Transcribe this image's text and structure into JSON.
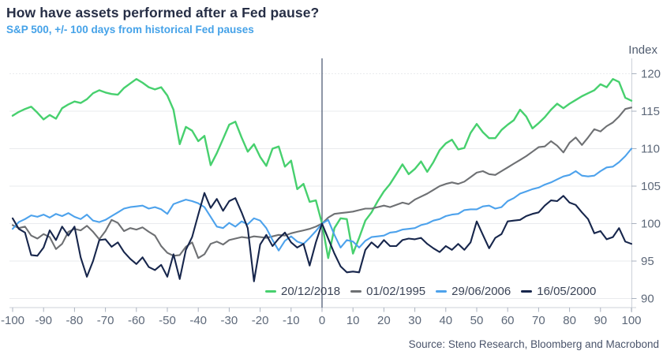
{
  "header": {
    "title": "How have assets performed after a Fed pause?",
    "subtitle": "S&P 500, +/- 100 days from historical Fed pauses"
  },
  "source": "Source: Steno Research, Bloomberg and Macrobond",
  "colors": {
    "title_text": "#262e45",
    "subtitle_text": "#45a2e8",
    "axis_text": "#5d6879",
    "gridline": "#e9ebee",
    "axis_line": "#ccd1d9",
    "tick_mark": "#aab2bf",
    "zero_line": "#44506b",
    "legend_text": "#3b4457",
    "source_text": "#49536a"
  },
  "chart_data": {
    "type": "line",
    "title": "How have assets performed after a Fed pause?",
    "subtitle": "S&P 500, +/- 100 days from historical Fed pauses",
    "xlabel": "",
    "ylabel": "Index",
    "xlim": [
      -100,
      100
    ],
    "ylim": [
      88.5,
      121.5
    ],
    "x_ticks": [
      -100,
      -90,
      -80,
      -70,
      -60,
      -50,
      -40,
      -30,
      -20,
      -10,
      0,
      10,
      20,
      30,
      40,
      50,
      60,
      70,
      80,
      90,
      100
    ],
    "y_ticks": [
      90,
      95,
      100,
      105,
      110,
      115,
      120
    ],
    "grid": "horizontal",
    "zero_line_x": 0,
    "legend_position": "bottom-right-inside",
    "x": [
      -100,
      -98,
      -96,
      -94,
      -92,
      -90,
      -88,
      -86,
      -84,
      -82,
      -80,
      -78,
      -76,
      -74,
      -72,
      -70,
      -68,
      -66,
      -64,
      -62,
      -60,
      -58,
      -56,
      -54,
      -52,
      -50,
      -48,
      -46,
      -44,
      -42,
      -40,
      -38,
      -36,
      -34,
      -32,
      -30,
      -28,
      -26,
      -24,
      -22,
      -20,
      -18,
      -16,
      -14,
      -12,
      -10,
      -8,
      -6,
      -4,
      -2,
      0,
      2,
      4,
      6,
      8,
      10,
      12,
      14,
      16,
      18,
      20,
      22,
      24,
      26,
      28,
      30,
      32,
      34,
      36,
      38,
      40,
      42,
      44,
      46,
      48,
      50,
      52,
      54,
      56,
      58,
      60,
      62,
      64,
      66,
      68,
      70,
      72,
      74,
      76,
      78,
      80,
      82,
      84,
      86,
      88,
      90,
      92,
      94,
      96,
      98,
      100
    ],
    "series": [
      {
        "name": "20/12/2018",
        "color": "#47d06e",
        "values": [
          114.4,
          114.9,
          115.3,
          115.6,
          114.8,
          113.9,
          114.5,
          114.0,
          115.4,
          115.9,
          116.3,
          116.1,
          116.6,
          117.4,
          117.8,
          117.5,
          117.3,
          117.2,
          118.1,
          118.7,
          119.3,
          118.8,
          118.2,
          117.9,
          118.2,
          117.1,
          115.2,
          110.6,
          112.9,
          112.4,
          111.0,
          111.7,
          107.8,
          109.4,
          111.3,
          113.2,
          113.6,
          111.5,
          109.6,
          110.6,
          108.9,
          107.7,
          110.0,
          110.3,
          107.6,
          108.4,
          104.6,
          105.3,
          102.9,
          103.1,
          100.0,
          95.4,
          99.4,
          100.7,
          100.6,
          96.0,
          98.1,
          100.4,
          101.5,
          103.0,
          104.3,
          105.3,
          106.6,
          107.9,
          106.6,
          107.3,
          108.3,
          106.9,
          108.2,
          109.8,
          110.7,
          111.2,
          109.9,
          110.1,
          112.1,
          113.3,
          112.2,
          111.4,
          111.4,
          112.5,
          113.2,
          113.8,
          115.2,
          114.3,
          112.7,
          113.4,
          114.2,
          115.2,
          116.0,
          115.4,
          116.0,
          116.5,
          117.0,
          117.4,
          117.8,
          118.6,
          118.2,
          119.3,
          118.9,
          116.8,
          116.4
        ]
      },
      {
        "name": "01/02/1995",
        "color": "#6e7073",
        "values": [
          99.8,
          99.4,
          99.6,
          98.4,
          98.0,
          98.6,
          98.2,
          96.6,
          97.3,
          98.9,
          99.3,
          99.1,
          99.7,
          98.9,
          97.9,
          99.0,
          100.5,
          100.1,
          99.0,
          99.4,
          99.2,
          99.5,
          98.9,
          98.4,
          97.0,
          96.1,
          95.7,
          95.8,
          96.9,
          97.5,
          95.4,
          95.9,
          97.3,
          97.6,
          97.2,
          97.8,
          98.0,
          98.2,
          98.1,
          98.3,
          98.2,
          98.1,
          98.3,
          98.5,
          98.4,
          98.7,
          98.9,
          99.1,
          99.3,
          99.6,
          100.0,
          100.8,
          101.3,
          101.4,
          101.5,
          101.6,
          101.8,
          102.0,
          102.0,
          102.2,
          102.4,
          102.2,
          102.5,
          102.8,
          102.6,
          103.2,
          103.6,
          104.0,
          104.5,
          105.0,
          105.3,
          105.5,
          105.3,
          105.6,
          106.2,
          106.8,
          107.0,
          106.6,
          106.5,
          107.0,
          107.5,
          108.0,
          108.5,
          109.0,
          109.6,
          110.2,
          110.3,
          111.0,
          110.4,
          109.5,
          110.8,
          111.5,
          110.5,
          111.5,
          112.6,
          112.3,
          113.0,
          113.5,
          114.3,
          115.3,
          115.5
        ]
      },
      {
        "name": "29/06/2006",
        "color": "#4da2ec",
        "values": [
          99.3,
          100.2,
          100.6,
          101.1,
          100.9,
          101.2,
          100.8,
          101.3,
          101.0,
          101.4,
          100.9,
          100.6,
          101.2,
          100.4,
          100.2,
          100.5,
          101.0,
          101.5,
          102.0,
          102.2,
          102.3,
          102.4,
          102.0,
          102.2,
          101.9,
          101.3,
          102.6,
          102.9,
          103.2,
          103.0,
          102.7,
          102.2,
          100.9,
          99.6,
          99.4,
          100.1,
          99.6,
          100.3,
          99.9,
          100.7,
          100.4,
          99.4,
          97.8,
          96.4,
          97.7,
          98.3,
          97.6,
          97.3,
          98.1,
          99.0,
          100.0,
          100.5,
          98.5,
          96.8,
          97.8,
          97.6,
          96.8,
          97.7,
          98.2,
          98.3,
          98.4,
          98.8,
          98.9,
          99.2,
          99.3,
          99.4,
          99.8,
          100.0,
          100.4,
          100.6,
          101.0,
          101.2,
          101.3,
          101.8,
          101.9,
          101.9,
          102.3,
          102.4,
          102.0,
          102.2,
          103.0,
          103.4,
          104.0,
          104.3,
          104.6,
          104.8,
          105.2,
          105.5,
          105.9,
          106.3,
          106.5,
          107.0,
          106.4,
          106.3,
          106.4,
          107.0,
          107.5,
          107.6,
          108.2,
          109.0,
          110.0
        ]
      },
      {
        "name": "16/05/2000",
        "color": "#17264c",
        "values": [
          100.7,
          99.3,
          98.8,
          95.8,
          95.7,
          96.8,
          99.1,
          97.8,
          99.6,
          98.4,
          99.6,
          95.5,
          92.9,
          95.0,
          97.8,
          97.9,
          96.9,
          97.5,
          96.2,
          95.3,
          94.6,
          95.5,
          94.2,
          93.8,
          94.5,
          92.9,
          95.9,
          92.6,
          96.5,
          98.2,
          101.2,
          104.1,
          102.1,
          103.3,
          101.7,
          103.0,
          103.4,
          101.5,
          99.4,
          92.3,
          97.2,
          98.5,
          97.0,
          98.0,
          98.8,
          97.5,
          96.8,
          97.3,
          94.4,
          97.5,
          100.0,
          98.0,
          96.0,
          94.3,
          93.5,
          93.6,
          93.5,
          96.5,
          97.5,
          96.8,
          97.8,
          97.0,
          97.0,
          97.8,
          98.0,
          97.9,
          98.1,
          97.3,
          96.7,
          96.2,
          97.0,
          96.5,
          97.3,
          96.5,
          97.5,
          100.3,
          98.5,
          96.7,
          98.1,
          98.6,
          100.3,
          100.4,
          100.5,
          101.0,
          101.3,
          101.5,
          102.4,
          103.1,
          103.0,
          103.7,
          102.8,
          102.5,
          101.5,
          100.6,
          98.7,
          99.0,
          97.9,
          98.2,
          99.4,
          97.6,
          97.3
        ]
      }
    ]
  }
}
